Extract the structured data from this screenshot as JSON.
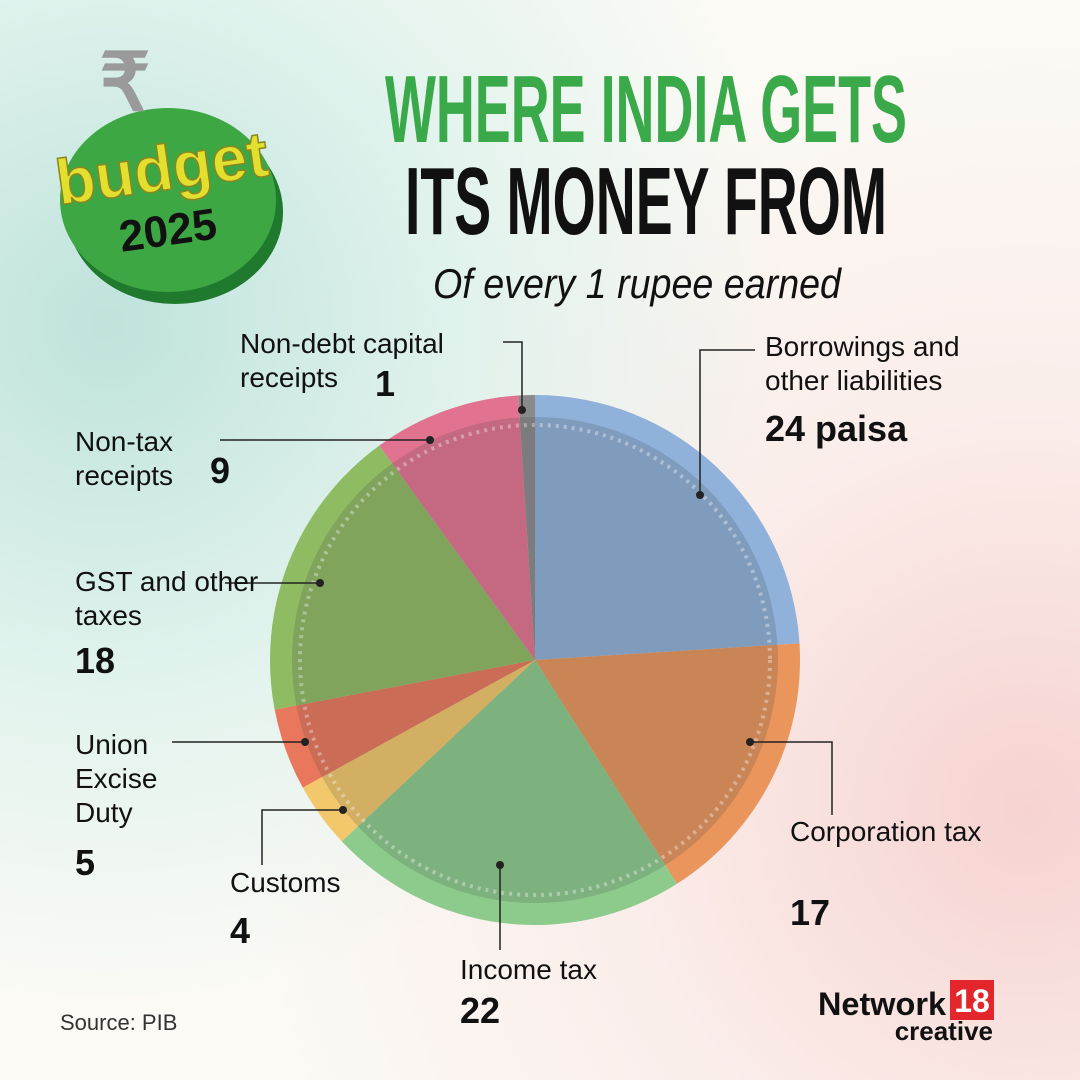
{
  "chart_data": {
    "type": "pie",
    "title": [
      "WHERE INDIA GETS",
      "ITS MONEY FROM"
    ],
    "subtitle": "Of every 1 rupee earned",
    "categories": [
      "Borrowings and other liabilities",
      "Corporation tax",
      "Income tax",
      "Customs",
      "Union Excise Duty",
      "GST and other taxes",
      "Non-tax receipts",
      "Non-debt capital receipts"
    ],
    "values": [
      24,
      17,
      22,
      4,
      5,
      18,
      9,
      1
    ],
    "value_labels": [
      "24 paisa",
      "17",
      "22",
      "4",
      "5",
      "18",
      "9",
      "1"
    ],
    "colors": [
      "#8fb1da",
      "#e9955c",
      "#8ccb8c",
      "#f3c86c",
      "#e9775c",
      "#8fbb63",
      "#e27390",
      "#8a8a8a"
    ],
    "source": "Source: PIB"
  },
  "logo": {
    "symbol": "₹",
    "word": "budget",
    "year": "2025"
  },
  "brand": {
    "name": "Network",
    "number": "18",
    "tagline": "creative"
  }
}
